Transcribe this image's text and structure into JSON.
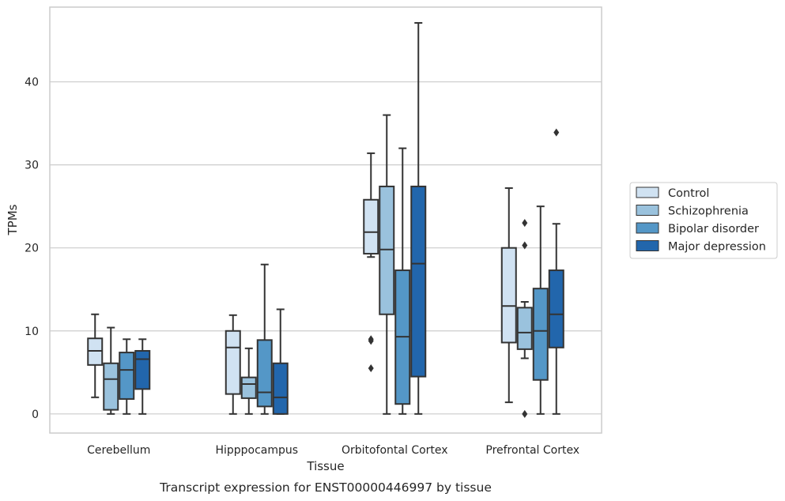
{
  "chart_data": {
    "type": "box",
    "title": "",
    "caption": "Transcript expression for ENST00000446997 by tissue",
    "xlabel": "Tissue",
    "ylabel": "TPMs",
    "ylim": [
      -2.3,
      49
    ],
    "yticks": [
      0,
      10,
      20,
      30,
      40
    ],
    "grid": "horizontal",
    "legend_position": "right",
    "categories": [
      "Cerebellum",
      "Hipppocampus",
      "Orbitofontal Cortex",
      "Prefrontal Cortex"
    ],
    "series": [
      {
        "name": "Control",
        "color": "#d0e2f2",
        "boxes": [
          {
            "whislo": 2.0,
            "q1": 5.9,
            "med": 7.6,
            "q3": 9.1,
            "whishi": 12.0,
            "fliers": []
          },
          {
            "whislo": 0.0,
            "q1": 2.4,
            "med": 8.0,
            "q3": 10.0,
            "whishi": 11.9,
            "fliers": []
          },
          {
            "whislo": 18.9,
            "q1": 19.3,
            "med": 21.9,
            "q3": 25.8,
            "whishi": 31.4,
            "fliers": [
              9.0,
              8.8,
              5.5
            ]
          },
          {
            "whislo": 1.4,
            "q1": 8.6,
            "med": 13.0,
            "q3": 20.0,
            "whishi": 27.2,
            "fliers": []
          }
        ]
      },
      {
        "name": "Schizophrenia",
        "color": "#9ac2dd",
        "boxes": [
          {
            "whislo": 0.0,
            "q1": 0.5,
            "med": 4.2,
            "q3": 6.1,
            "whishi": 10.4,
            "fliers": []
          },
          {
            "whislo": 0.0,
            "q1": 1.9,
            "med": 3.6,
            "q3": 4.4,
            "whishi": 7.9,
            "fliers": []
          },
          {
            "whislo": 0.0,
            "q1": 12.0,
            "med": 19.8,
            "q3": 27.4,
            "whishi": 36.0,
            "fliers": []
          },
          {
            "whislo": 6.7,
            "q1": 7.8,
            "med": 9.8,
            "q3": 12.8,
            "whishi": 13.5,
            "fliers": [
              23.0,
              20.3,
              0.0
            ]
          }
        ]
      },
      {
        "name": "Bipolar disorder",
        "color": "#5497c7",
        "boxes": [
          {
            "whislo": 0.0,
            "q1": 1.8,
            "med": 5.3,
            "q3": 7.4,
            "whishi": 9.0,
            "fliers": []
          },
          {
            "whislo": 0.0,
            "q1": 0.9,
            "med": 2.6,
            "q3": 8.9,
            "whishi": 18.0,
            "fliers": []
          },
          {
            "whislo": 0.0,
            "q1": 1.2,
            "med": 9.3,
            "q3": 17.3,
            "whishi": 32.0,
            "fliers": []
          },
          {
            "whislo": 0.0,
            "q1": 4.1,
            "med": 10.0,
            "q3": 15.1,
            "whishi": 25.0,
            "fliers": []
          }
        ]
      },
      {
        "name": "Major depression",
        "color": "#2266ac",
        "boxes": [
          {
            "whislo": 0.0,
            "q1": 3.0,
            "med": 6.6,
            "q3": 7.6,
            "whishi": 9.0,
            "fliers": []
          },
          {
            "whislo": 0.0,
            "q1": 0.0,
            "med": 2.0,
            "q3": 6.1,
            "whishi": 12.6,
            "fliers": []
          },
          {
            "whislo": 0.0,
            "q1": 4.5,
            "med": 18.1,
            "q3": 27.4,
            "whishi": 47.1,
            "fliers": []
          },
          {
            "whislo": 0.0,
            "q1": 8.0,
            "med": 12.0,
            "q3": 17.3,
            "whishi": 22.9,
            "fliers": [
              33.9
            ]
          }
        ]
      }
    ]
  }
}
